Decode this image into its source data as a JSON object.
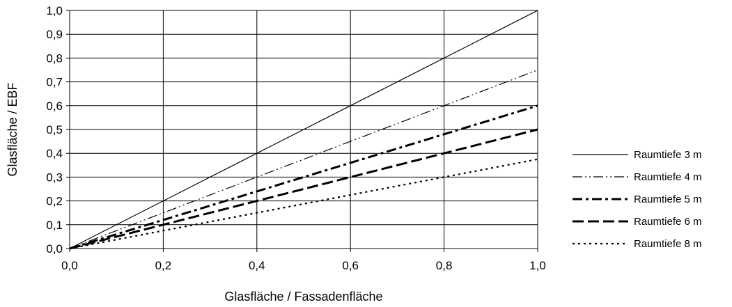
{
  "chart_data": {
    "type": "line",
    "title": "",
    "xlabel": "Glasfläche / Fassadenfläche",
    "ylabel": "Glasfläche / EBF",
    "xlim": [
      0.0,
      1.0
    ],
    "ylim": [
      0.0,
      1.0
    ],
    "x_ticks": [
      "0,0",
      "0,2",
      "0,4",
      "0,6",
      "0,8",
      "1,0"
    ],
    "y_ticks": [
      "0,0",
      "0,1",
      "0,2",
      "0,3",
      "0,4",
      "0,5",
      "0,6",
      "0,7",
      "0,8",
      "0,9",
      "1,0"
    ],
    "grid": true,
    "legend_position": "right",
    "x": [
      0.0,
      0.2,
      0.4,
      0.6,
      0.8,
      1.0
    ],
    "series": [
      {
        "name": "Raumtiefe 3 m",
        "values": [
          0.0,
          0.2,
          0.4,
          0.6,
          0.8,
          1.0
        ],
        "dash": "solid",
        "stroke_weight": "thin",
        "color": "#000000"
      },
      {
        "name": "Raumtiefe 4 m",
        "values": [
          0.0,
          0.15,
          0.3,
          0.45,
          0.6,
          0.75
        ],
        "dash": "dash-dot-dot",
        "stroke_weight": "thin",
        "color": "#000000"
      },
      {
        "name": "Raumtiefe 5 m",
        "values": [
          0.0,
          0.12,
          0.24,
          0.36,
          0.48,
          0.6
        ],
        "dash": "dash-dot",
        "stroke_weight": "thick",
        "color": "#000000"
      },
      {
        "name": "Raumtiefe 6 m",
        "values": [
          0.0,
          0.1,
          0.2,
          0.3,
          0.4,
          0.5
        ],
        "dash": "dash",
        "stroke_weight": "thick",
        "color": "#000000"
      },
      {
        "name": "Raumtiefe 8 m",
        "values": [
          0.0,
          0.075,
          0.15,
          0.225,
          0.3,
          0.375
        ],
        "dash": "dotted",
        "stroke_weight": "medium",
        "color": "#000000"
      }
    ]
  }
}
